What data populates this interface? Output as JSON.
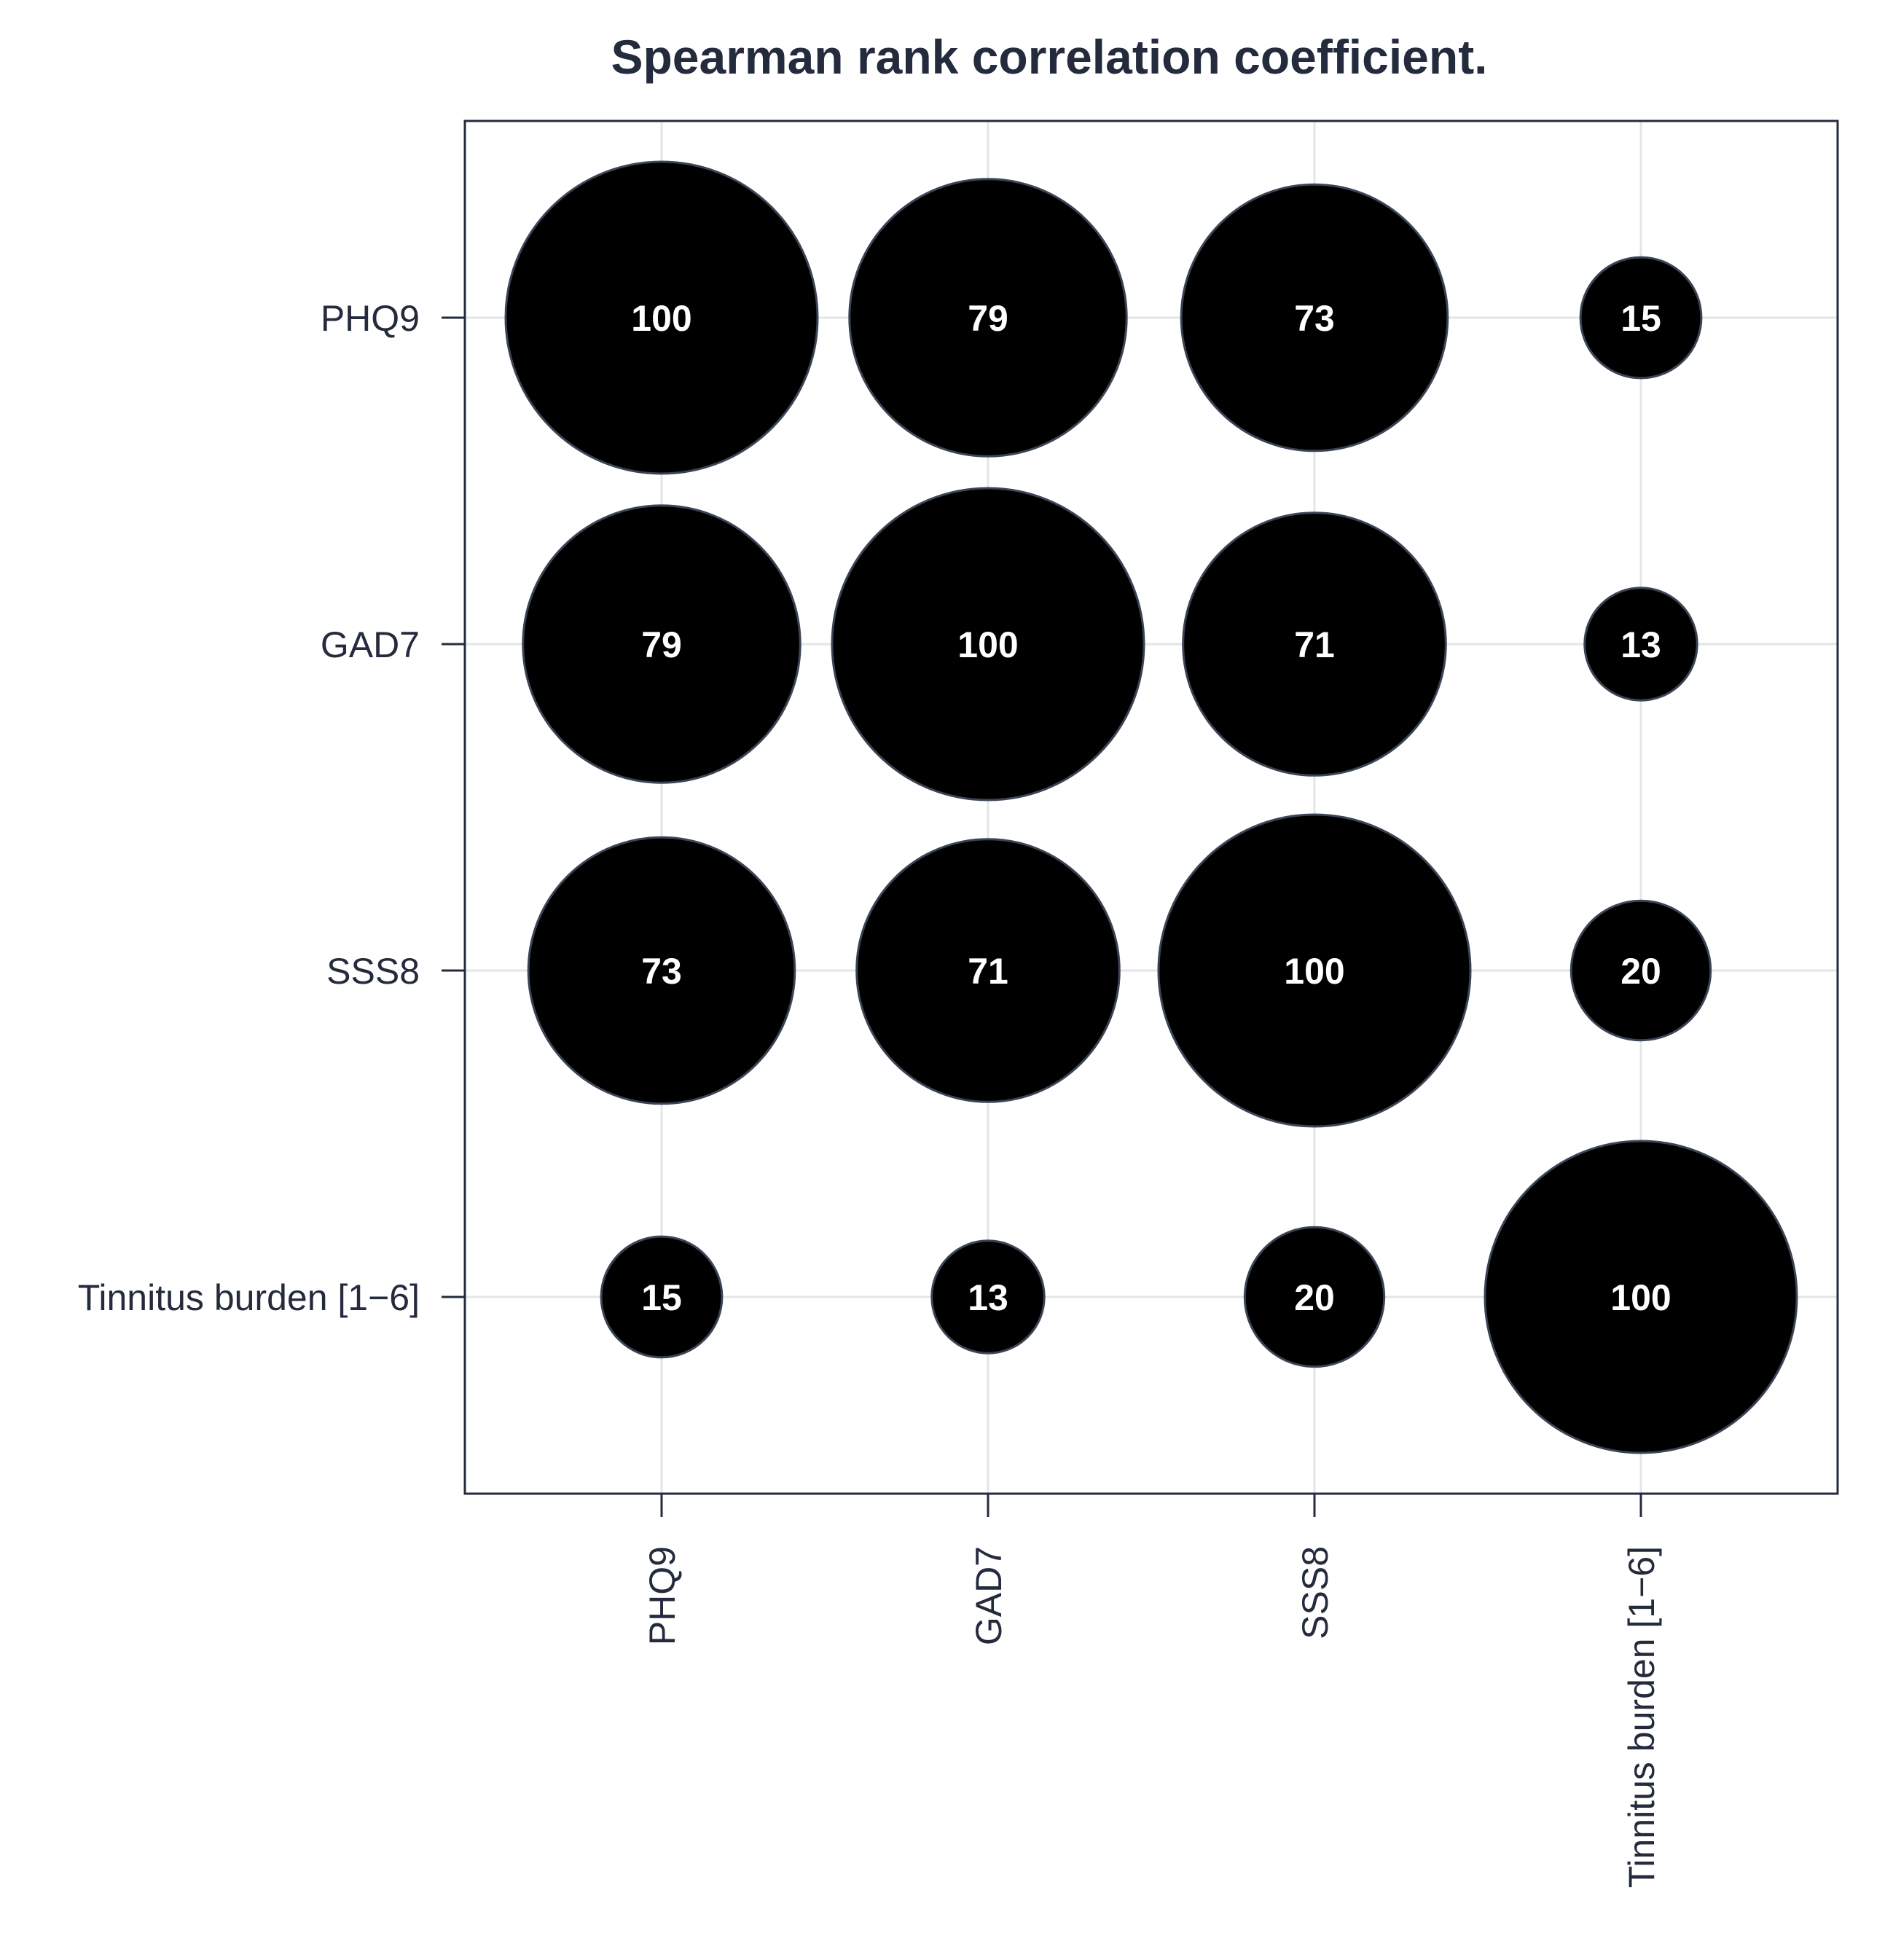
{
  "chart_data": {
    "type": "scatter",
    "subtype": "bubble-correlation-matrix",
    "title": "Spearman rank correlation coefficient.",
    "xlabel": "",
    "ylabel": "",
    "variables": [
      "PHQ9",
      "GAD7",
      "SSS8",
      "Tinnitus burden [1−6]"
    ],
    "x_tick_labels": [
      "PHQ9",
      "GAD7",
      "SSS8",
      "Tinnitus burden [1−6]"
    ],
    "y_tick_labels": [
      "PHQ9",
      "GAD7",
      "SSS8",
      "Tinnitus burden [1−6]"
    ],
    "matrix": [
      [
        100,
        79,
        73,
        15
      ],
      [
        79,
        100,
        71,
        13
      ],
      [
        73,
        71,
        100,
        20
      ],
      [
        15,
        13,
        20,
        100
      ]
    ],
    "value_range": [
      0,
      100
    ],
    "grid": true,
    "legend": "none"
  },
  "colors": {
    "bubble_fill": "#000000",
    "bubble_stroke": "#3b4455",
    "grid": "#e2e5ea",
    "axis": "#232b3d",
    "text": "#232b3d",
    "data_label": "#ffffff"
  }
}
